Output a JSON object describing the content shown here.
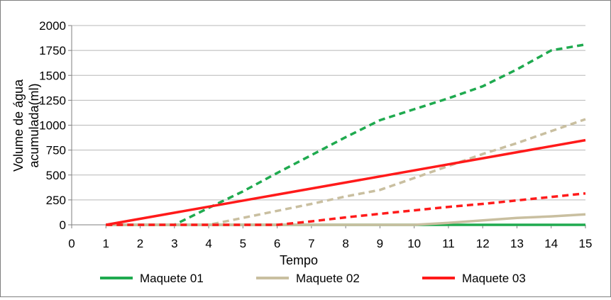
{
  "chart_data": {
    "type": "line",
    "xlabel": "Tempo",
    "ylabel_lines": [
      "Volume de água",
      "acumulada(ml)"
    ],
    "xlim": [
      0,
      15
    ],
    "ylim": [
      0,
      2000
    ],
    "x_ticks": [
      0,
      1,
      2,
      3,
      4,
      5,
      6,
      7,
      8,
      9,
      10,
      11,
      12,
      13,
      14,
      15
    ],
    "y_ticks": [
      0,
      250,
      500,
      750,
      1000,
      1250,
      1500,
      1750,
      2000
    ],
    "grid": "horizontal",
    "legend_position": "bottom",
    "legend": [
      {
        "name": "Maquete 01",
        "color": "#1faa4f"
      },
      {
        "name": "Maquete 02",
        "color": "#c9bfa0"
      },
      {
        "name": "Maquete 03",
        "color": "#ff1a1a"
      }
    ],
    "series": [
      {
        "group": 0,
        "style": "solid",
        "color": "#1faa4f",
        "x": [
          1,
          15
        ],
        "y": [
          0,
          0
        ]
      },
      {
        "group": 0,
        "style": "dashed",
        "color": "#1faa4f",
        "x": [
          1,
          3,
          4,
          5,
          6,
          7,
          8,
          9,
          10,
          11,
          12,
          13,
          14,
          15
        ],
        "y": [
          0,
          0,
          170,
          335,
          520,
          700,
          880,
          1050,
          1160,
          1270,
          1390,
          1560,
          1750,
          1810
        ]
      },
      {
        "group": 1,
        "style": "solid",
        "color": "#c9bfa0",
        "x": [
          1,
          10,
          11,
          12,
          13,
          14,
          15
        ],
        "y": [
          0,
          0,
          20,
          45,
          70,
          85,
          105
        ]
      },
      {
        "group": 1,
        "style": "dashed",
        "color": "#c9bfa0",
        "x": [
          1,
          4,
          5,
          6,
          7,
          8,
          9,
          10,
          11,
          12,
          13,
          14,
          15
        ],
        "y": [
          0,
          0,
          70,
          140,
          210,
          285,
          350,
          470,
          590,
          710,
          820,
          940,
          1060
        ]
      },
      {
        "group": 2,
        "style": "solid",
        "color": "#ff1a1a",
        "x": [
          1,
          15
        ],
        "y": [
          0,
          850
        ]
      },
      {
        "group": 2,
        "style": "dashed",
        "color": "#ff1a1a",
        "x": [
          1,
          6,
          7,
          8,
          9,
          10,
          11,
          12,
          13,
          14,
          15
        ],
        "y": [
          0,
          0,
          35,
          75,
          110,
          145,
          180,
          210,
          245,
          280,
          315
        ]
      }
    ]
  }
}
